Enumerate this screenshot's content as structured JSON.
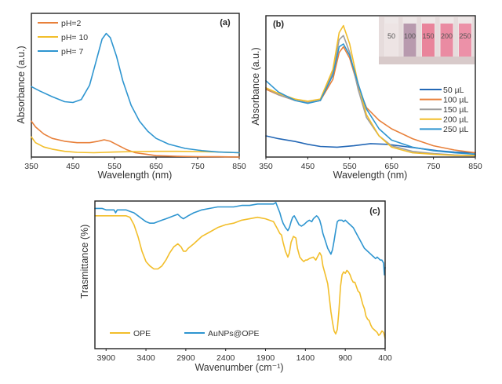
{
  "chart_data": [
    {
      "id": "a",
      "type": "line",
      "panel_label": "(a)",
      "title": "",
      "xlabel": "Wavelength (nm)",
      "ylabel": "Absorbance (a.u.)",
      "xlim": [
        350,
        850
      ],
      "ylim": [
        0,
        1
      ],
      "xticks": [
        350,
        450,
        550,
        650,
        750,
        850
      ],
      "yticks_visible": false,
      "grid": false,
      "legend_position": "top-left",
      "series": [
        {
          "name": "pH=2",
          "color": "#E8803A",
          "x": [
            350,
            360,
            380,
            400,
            430,
            460,
            490,
            510,
            525,
            540,
            560,
            580,
            600,
            625,
            650,
            700,
            750,
            800,
            850
          ],
          "y": [
            0.25,
            0.21,
            0.16,
            0.13,
            0.11,
            0.1,
            0.1,
            0.11,
            0.12,
            0.11,
            0.08,
            0.05,
            0.03,
            0.02,
            0.01,
            0.005,
            0.003,
            0.002,
            0.0
          ]
        },
        {
          "name": "pH= 10",
          "color": "#F2BE2A",
          "x": [
            350,
            360,
            380,
            400,
            430,
            460,
            500,
            550,
            600,
            650,
            700,
            750,
            800,
            850
          ],
          "y": [
            0.14,
            0.1,
            0.07,
            0.055,
            0.04,
            0.033,
            0.03,
            0.035,
            0.038,
            0.04,
            0.04,
            0.038,
            0.035,
            0.03
          ]
        },
        {
          "name": "pH= 7",
          "color": "#2E95D0",
          "x": [
            350,
            370,
            400,
            430,
            450,
            470,
            490,
            505,
            520,
            530,
            540,
            555,
            570,
            590,
            610,
            630,
            650,
            680,
            720,
            760,
            800,
            850
          ],
          "y": [
            0.49,
            0.46,
            0.42,
            0.385,
            0.38,
            0.4,
            0.5,
            0.66,
            0.82,
            0.86,
            0.83,
            0.7,
            0.53,
            0.36,
            0.25,
            0.18,
            0.13,
            0.09,
            0.06,
            0.045,
            0.035,
            0.03
          ]
        }
      ]
    },
    {
      "id": "b",
      "type": "line",
      "panel_label": "(b)",
      "title": "",
      "xlabel": "Wavelength (nm)",
      "ylabel": "Absorbance (a.u.)",
      "xlim": [
        350,
        850
      ],
      "ylim": [
        0,
        1
      ],
      "xticks": [
        350,
        450,
        550,
        650,
        750,
        850
      ],
      "yticks_visible": false,
      "grid": false,
      "legend_position": "right",
      "inset": {
        "description": "photo of five cuvettes",
        "labels": [
          "50",
          "100",
          "150",
          "200",
          "250"
        ],
        "colors": [
          "#EDE4E4",
          "#B89AAE",
          "#E9849B",
          "#EA8BA2",
          "#EC91A8"
        ]
      },
      "series": [
        {
          "name": "50 µL",
          "color": "#2468B6",
          "x": [
            350,
            380,
            420,
            450,
            480,
            520,
            560,
            600,
            640,
            680,
            720,
            760,
            800,
            850
          ],
          "y": [
            0.15,
            0.13,
            0.11,
            0.09,
            0.075,
            0.07,
            0.08,
            0.095,
            0.09,
            0.075,
            0.06,
            0.045,
            0.035,
            0.03
          ]
        },
        {
          "name": "100  µL",
          "color": "#E8803A",
          "x": [
            350,
            380,
            420,
            450,
            480,
            510,
            525,
            535,
            550,
            570,
            590,
            620,
            650,
            700,
            750,
            800,
            850
          ],
          "y": [
            0.48,
            0.44,
            0.4,
            0.385,
            0.4,
            0.55,
            0.74,
            0.78,
            0.7,
            0.5,
            0.35,
            0.26,
            0.2,
            0.13,
            0.08,
            0.05,
            0.03
          ]
        },
        {
          "name": "150  µL",
          "color": "#9E9E9E",
          "x": [
            350,
            380,
            420,
            450,
            480,
            510,
            525,
            535,
            550,
            570,
            590,
            620,
            650,
            700,
            750,
            800,
            850
          ],
          "y": [
            0.49,
            0.44,
            0.4,
            0.385,
            0.4,
            0.6,
            0.83,
            0.86,
            0.74,
            0.48,
            0.28,
            0.15,
            0.08,
            0.04,
            0.025,
            0.015,
            0.01
          ]
        },
        {
          "name": "200  µL",
          "color": "#F2BE2A",
          "x": [
            350,
            380,
            420,
            450,
            480,
            510,
            525,
            535,
            550,
            570,
            590,
            620,
            650,
            700,
            750,
            800,
            850
          ],
          "y": [
            0.49,
            0.45,
            0.41,
            0.395,
            0.41,
            0.62,
            0.88,
            0.93,
            0.8,
            0.52,
            0.3,
            0.15,
            0.07,
            0.03,
            0.02,
            0.012,
            0.01
          ]
        },
        {
          "name": "250  µL",
          "color": "#2E95D0",
          "x": [
            350,
            380,
            420,
            450,
            480,
            510,
            525,
            535,
            550,
            570,
            590,
            620,
            650,
            700,
            750,
            800,
            850
          ],
          "y": [
            0.54,
            0.46,
            0.4,
            0.38,
            0.4,
            0.58,
            0.78,
            0.8,
            0.72,
            0.52,
            0.34,
            0.2,
            0.12,
            0.07,
            0.045,
            0.03,
            0.02
          ]
        }
      ]
    },
    {
      "id": "c",
      "type": "line",
      "panel_label": "(c)",
      "title": "",
      "xlabel": "Wavenumber  (cm⁻¹)",
      "ylabel": "Trasmittance (%)",
      "xlim": [
        4040,
        400
      ],
      "ylim": [
        0,
        1
      ],
      "xticks": [
        3900,
        3400,
        2900,
        2400,
        1900,
        1400,
        900,
        400
      ],
      "yticks_visible": false,
      "grid": false,
      "legend_position": "bottom-left",
      "series": [
        {
          "name": "OPE",
          "color": "#F2BE2A",
          "x": [
            4040,
            3900,
            3800,
            3760,
            3720,
            3650,
            3600,
            3550,
            3500,
            3450,
            3400,
            3350,
            3300,
            3250,
            3200,
            3150,
            3100,
            3050,
            3000,
            2960,
            2930,
            2900,
            2870,
            2800,
            2700,
            2600,
            2500,
            2400,
            2300,
            2200,
            2100,
            2000,
            1900,
            1800,
            1760,
            1720,
            1700,
            1680,
            1650,
            1620,
            1600,
            1580,
            1550,
            1520,
            1500,
            1470,
            1440,
            1420,
            1400,
            1380,
            1350,
            1300,
            1270,
            1250,
            1220,
            1200,
            1180,
            1150,
            1120,
            1100,
            1080,
            1060,
            1040,
            1020,
            1000,
            980,
            960,
            940,
            920,
            900,
            880,
            860,
            840,
            820,
            800,
            780,
            760,
            740,
            720,
            700,
            680,
            660,
            640,
            620,
            600,
            580,
            560,
            540,
            520,
            500,
            480,
            460,
            440,
            420,
            400
          ],
          "y": [
            0.9,
            0.9,
            0.9,
            0.9,
            0.9,
            0.9,
            0.89,
            0.84,
            0.76,
            0.66,
            0.59,
            0.56,
            0.54,
            0.54,
            0.56,
            0.6,
            0.65,
            0.69,
            0.71,
            0.69,
            0.66,
            0.66,
            0.68,
            0.71,
            0.76,
            0.79,
            0.82,
            0.84,
            0.85,
            0.87,
            0.88,
            0.89,
            0.88,
            0.86,
            0.82,
            0.78,
            0.77,
            0.72,
            0.66,
            0.62,
            0.65,
            0.72,
            0.76,
            0.75,
            0.68,
            0.62,
            0.6,
            0.59,
            0.6,
            0.6,
            0.61,
            0.62,
            0.6,
            0.62,
            0.65,
            0.63,
            0.56,
            0.5,
            0.44,
            0.35,
            0.25,
            0.18,
            0.12,
            0.1,
            0.13,
            0.25,
            0.42,
            0.5,
            0.52,
            0.51,
            0.53,
            0.52,
            0.5,
            0.47,
            0.45,
            0.45,
            0.42,
            0.39,
            0.38,
            0.34,
            0.3,
            0.27,
            0.22,
            0.2,
            0.19,
            0.16,
            0.14,
            0.13,
            0.12,
            0.11,
            0.09,
            0.1,
            0.12,
            0.11,
            0.07
          ]
        },
        {
          "name": "AuNPs@OPE",
          "color": "#2E95D0",
          "x": [
            4040,
            3950,
            3900,
            3850,
            3800,
            3780,
            3760,
            3720,
            3650,
            3600,
            3550,
            3500,
            3450,
            3400,
            3350,
            3300,
            3250,
            3200,
            3150,
            3100,
            3050,
            3000,
            2960,
            2930,
            2900,
            2870,
            2800,
            2700,
            2600,
            2500,
            2400,
            2300,
            2200,
            2100,
            2000,
            1900,
            1800,
            1770,
            1750,
            1720,
            1700,
            1680,
            1650,
            1620,
            1600,
            1580,
            1560,
            1540,
            1520,
            1500,
            1480,
            1450,
            1420,
            1400,
            1380,
            1350,
            1320,
            1300,
            1280,
            1260,
            1240,
            1220,
            1200,
            1180,
            1150,
            1120,
            1100,
            1080,
            1060,
            1040,
            1020,
            1000,
            980,
            960,
            940,
            920,
            900,
            880,
            860,
            840,
            820,
            800,
            780,
            760,
            740,
            720,
            700,
            680,
            660,
            640,
            620,
            600,
            580,
            560,
            540,
            520,
            500,
            480,
            460,
            440,
            420,
            410,
            400
          ],
          "y": [
            0.95,
            0.95,
            0.94,
            0.94,
            0.94,
            0.92,
            0.94,
            0.94,
            0.94,
            0.93,
            0.92,
            0.9,
            0.88,
            0.86,
            0.85,
            0.85,
            0.86,
            0.87,
            0.88,
            0.89,
            0.9,
            0.91,
            0.89,
            0.88,
            0.89,
            0.9,
            0.92,
            0.94,
            0.95,
            0.96,
            0.96,
            0.96,
            0.97,
            0.97,
            0.98,
            0.98,
            0.98,
            0.99,
            0.96,
            0.92,
            0.88,
            0.85,
            0.82,
            0.8,
            0.82,
            0.86,
            0.89,
            0.9,
            0.88,
            0.86,
            0.84,
            0.83,
            0.84,
            0.85,
            0.86,
            0.87,
            0.86,
            0.88,
            0.89,
            0.9,
            0.89,
            0.87,
            0.83,
            0.78,
            0.73,
            0.68,
            0.66,
            0.64,
            0.67,
            0.73,
            0.8,
            0.86,
            0.87,
            0.87,
            0.87,
            0.86,
            0.87,
            0.86,
            0.85,
            0.84,
            0.83,
            0.82,
            0.8,
            0.78,
            0.76,
            0.74,
            0.72,
            0.7,
            0.68,
            0.67,
            0.66,
            0.65,
            0.64,
            0.63,
            0.62,
            0.61,
            0.62,
            0.61,
            0.6,
            0.6,
            0.58,
            0.5,
            0.55
          ]
        }
      ]
    }
  ]
}
